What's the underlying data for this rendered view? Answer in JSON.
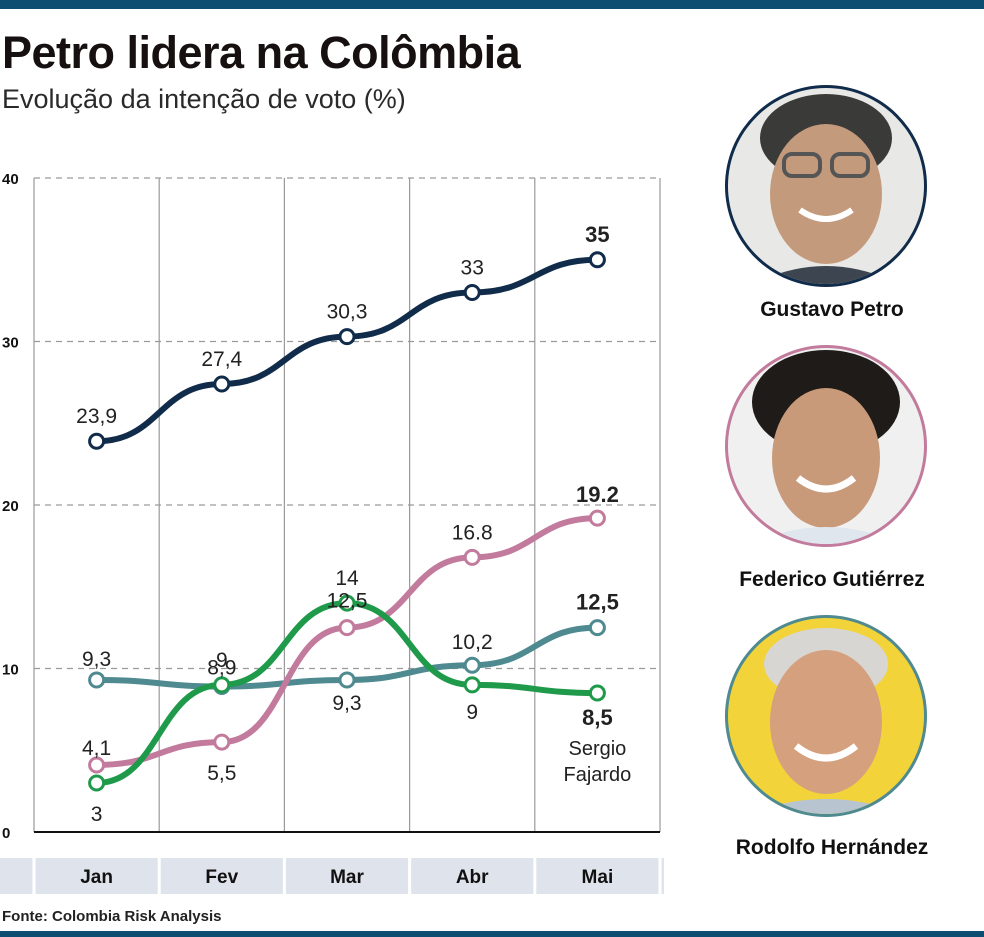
{
  "header": {
    "title": "Petro lidera na Colômbia",
    "subtitle": "Evolução da intenção de voto (%)"
  },
  "source": "Fonte: Colombia Risk Analysis",
  "candidates": [
    {
      "name": "Gustavo Petro",
      "color": "#102c4a"
    },
    {
      "name": "Federico Gutiérrez",
      "color": "#c27b9c"
    },
    {
      "name": "Rodolfo Hernández",
      "color": "#4e8a90"
    }
  ],
  "chart_data": {
    "type": "line",
    "categories": [
      "Jan",
      "Fev",
      "Mar",
      "Abr",
      "Mai"
    ],
    "ylim": [
      0,
      40
    ],
    "yticks": [
      "0",
      "10",
      "20",
      "30",
      "40"
    ],
    "grid": true,
    "series": [
      {
        "name": "Gustavo Petro",
        "color": "#102c4a",
        "values": [
          23.9,
          27.4,
          30.3,
          33,
          35
        ],
        "labels": [
          "23,9",
          "27,4",
          "30,3",
          "33",
          "35"
        ]
      },
      {
        "name": "Federico Gutiérrez",
        "color": "#c27b9c",
        "values": [
          4.1,
          5.5,
          12.5,
          16.8,
          19.2
        ],
        "labels": [
          "4,1",
          "5,5",
          "12,5",
          "16.8",
          "19.2"
        ]
      },
      {
        "name": "Rodolfo Hernández",
        "color": "#4e8a90",
        "values": [
          9.3,
          8.9,
          9.3,
          10.2,
          12.5
        ],
        "labels": [
          "9,3",
          "8,9",
          "9,3",
          "10,2",
          "12,5"
        ]
      },
      {
        "name": "Sergio Fajardo",
        "color": "#1f9a4a",
        "values": [
          3,
          9,
          14,
          9,
          8.5
        ],
        "labels": [
          "3",
          "9",
          "14",
          "9",
          "8,5"
        ]
      }
    ],
    "annotations": [
      {
        "text": "Sergio",
        "series": 3
      },
      {
        "text": "Fajardo",
        "series": 3
      }
    ]
  }
}
